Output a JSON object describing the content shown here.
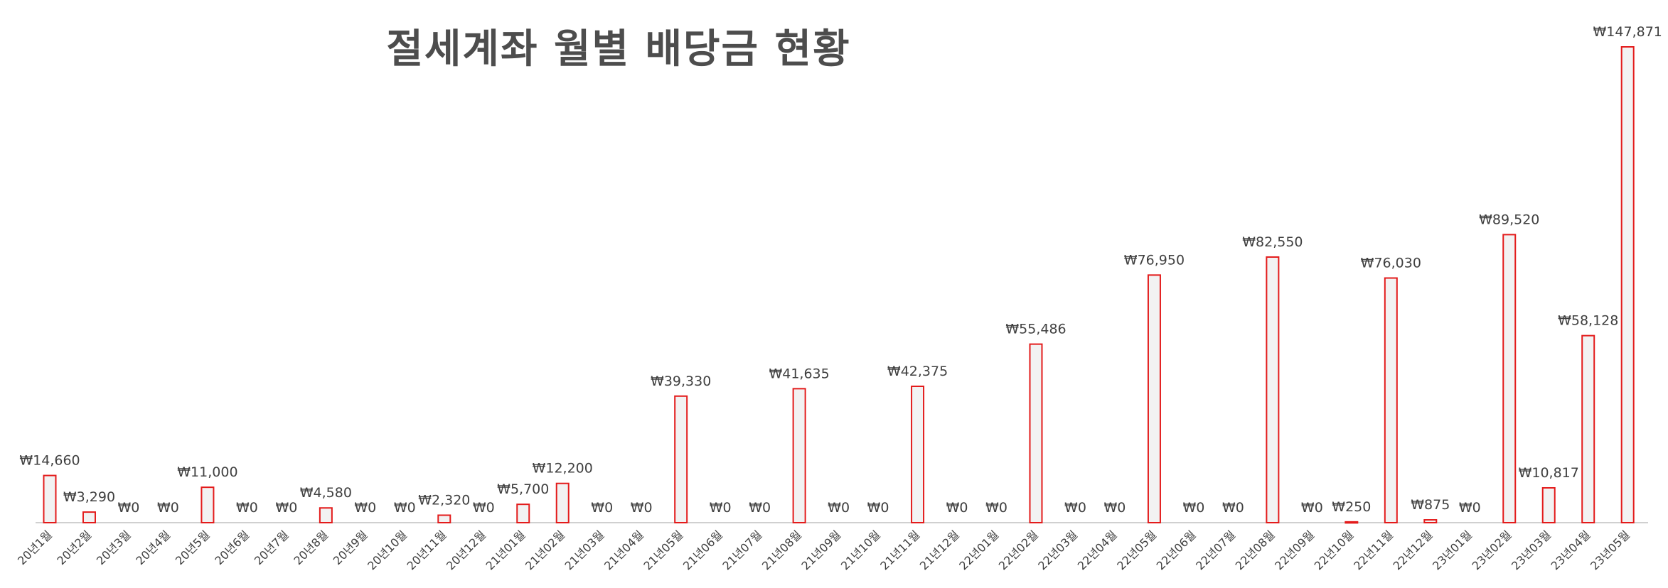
{
  "chart_data": {
    "type": "bar",
    "title": "절세계좌 월별 배당금 현황",
    "currency_symbol": "₩",
    "categories": [
      "20년1월",
      "20년2월",
      "20년3월",
      "20년4월",
      "20년5월",
      "20년6월",
      "20년7월",
      "20년8월",
      "20년9월",
      "20년10월",
      "20년11월",
      "20년12월",
      "21년01월",
      "21년02월",
      "21년03월",
      "21년04월",
      "21년05월",
      "21년06월",
      "21년07월",
      "21년08월",
      "21년09월",
      "21년10월",
      "21년11월",
      "21년12월",
      "22년01월",
      "22년02월",
      "22년03월",
      "22년04월",
      "22년05월",
      "22년06월",
      "22년07월",
      "22년08월",
      "22년09월",
      "22년10월",
      "22년11월",
      "22년12월",
      "23년01월",
      "23년02월",
      "23년03월",
      "23년04월",
      "23년05월"
    ],
    "values": [
      14660,
      3290,
      0,
      0,
      11000,
      0,
      0,
      4580,
      0,
      0,
      2320,
      0,
      5700,
      12200,
      0,
      0,
      39330,
      0,
      0,
      41635,
      0,
      0,
      42375,
      0,
      0,
      55486,
      0,
      0,
      76950,
      0,
      0,
      82550,
      0,
      250,
      76030,
      875,
      0,
      89520,
      10817,
      58128,
      147871
    ],
    "data_labels": [
      "₩14,660",
      "₩3,290",
      "₩0",
      "₩0",
      "₩11,000",
      "₩0",
      "₩0",
      "₩4,580",
      "₩0",
      "₩0",
      "₩2,320",
      "₩0",
      "₩5,700",
      "₩12,200",
      "₩0",
      "₩0",
      "₩39,330",
      "₩0",
      "₩0",
      "₩41,635",
      "₩0",
      "₩0",
      "₩42,375",
      "₩0",
      "₩0",
      "₩55,486",
      "₩0",
      "₩0",
      "₩76,950",
      "₩0",
      "₩0",
      "₩82,550",
      "₩0",
      "₩250",
      "₩76,030",
      "₩875",
      "₩0",
      "₩89,520",
      "₩10,817",
      "₩58,128",
      "₩147,871"
    ],
    "ylim": [
      0,
      147871
    ],
    "grid": false,
    "legend": "none",
    "colors": {
      "bar_fill": "#f2f2f2",
      "bar_edge": "#e31b1b",
      "title": "#4d4d4d",
      "text": "#404040",
      "axis": "#d0d0d0"
    }
  }
}
